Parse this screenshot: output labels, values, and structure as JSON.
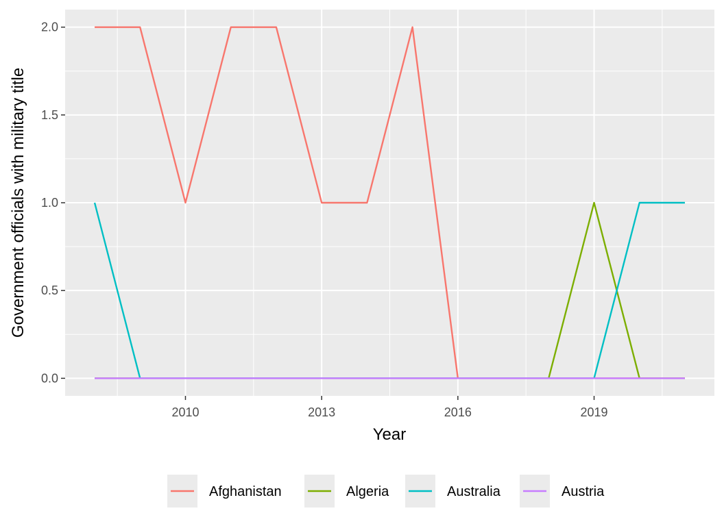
{
  "chart_data": {
    "type": "line",
    "title": "",
    "xlabel": "Year",
    "ylabel": "Government officials with military title",
    "x": [
      2008,
      2009,
      2010,
      2011,
      2012,
      2013,
      2014,
      2015,
      2016,
      2017,
      2018,
      2019,
      2020,
      2021
    ],
    "xlim": [
      2007.35,
      2021.65
    ],
    "ylim": [
      -0.1,
      2.1
    ],
    "x_ticks": [
      2010,
      2013,
      2016,
      2019
    ],
    "x_tick_labels": [
      "2010",
      "2013",
      "2016",
      "2019"
    ],
    "y_ticks": [
      0,
      0.5,
      1,
      1.5,
      2
    ],
    "y_tick_labels": [
      "0.0",
      "0.5",
      "1.0",
      "1.5",
      "2.0"
    ],
    "grid": true,
    "legend_position": "bottom",
    "series": [
      {
        "name": "Afghanistan",
        "color": "#F8766D",
        "values": [
          2,
          2,
          1,
          2,
          2,
          1,
          1,
          2,
          0,
          0,
          0,
          0,
          0,
          0
        ]
      },
      {
        "name": "Algeria",
        "color": "#7CAE00",
        "values": [
          0,
          0,
          0,
          0,
          0,
          0,
          0,
          0,
          0,
          0,
          0,
          1,
          0,
          0
        ]
      },
      {
        "name": "Australia",
        "color": "#00BFC4",
        "values": [
          1,
          0,
          0,
          0,
          0,
          0,
          0,
          0,
          0,
          0,
          0,
          0,
          1,
          1
        ]
      },
      {
        "name": "Austria",
        "color": "#C77CFF",
        "values": [
          0,
          0,
          0,
          0,
          0,
          0,
          0,
          0,
          0,
          0,
          0,
          0,
          0,
          0
        ]
      }
    ]
  }
}
